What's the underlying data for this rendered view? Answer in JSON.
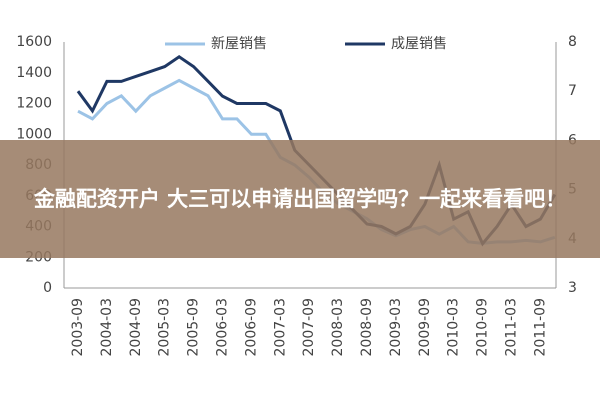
{
  "chart_data": {
    "type": "line",
    "categories": [
      "2003-09",
      null,
      "2004-03",
      null,
      "2004-09",
      null,
      "2005-03",
      null,
      "2005-09",
      null,
      "2006-03",
      null,
      "2006-09",
      null,
      "2007-03",
      null,
      "2007-09",
      null,
      "2008-03",
      null,
      "2008-09",
      null,
      "2009-03",
      null,
      "2009-09",
      null,
      "2010-03",
      null,
      "2010-09",
      null,
      "2011-03",
      null,
      "2011-09",
      null
    ],
    "series": [
      {
        "name": "新屋销售",
        "color": "#9cc3e6",
        "values": [
          1150,
          1100,
          1200,
          1250,
          1150,
          1250,
          1300,
          1350,
          1300,
          1250,
          1100,
          1100,
          1000,
          1000,
          850,
          800,
          720,
          620,
          550,
          500,
          450,
          380,
          340,
          380,
          400,
          350,
          400,
          300,
          290,
          300,
          300,
          310,
          300,
          330
        ]
      },
      {
        "name": "成屋销售",
        "color": "#1f3864",
        "axis": "y2",
        "values": [
          7.0,
          6.6,
          7.2,
          7.2,
          7.3,
          7.4,
          7.5,
          7.7,
          7.5,
          7.2,
          6.9,
          6.75,
          6.75,
          6.75,
          6.6,
          5.8,
          5.5,
          5.2,
          4.9,
          4.6,
          4.3,
          4.25,
          4.1,
          4.25,
          4.7,
          5.5,
          4.4,
          4.55,
          3.9,
          4.25,
          4.7,
          4.25,
          4.4,
          4.9
        ]
      }
    ],
    "ylim": [
      0,
      1600
    ],
    "yticks": [
      0,
      200,
      400,
      600,
      800,
      1000,
      1200,
      1400,
      1600
    ],
    "y2lim": [
      3,
      8
    ],
    "y2ticks": [
      3,
      4,
      5,
      6,
      7,
      8
    ]
  },
  "banner": {
    "text": "金融配资开户 大三可以申请出国留学吗？一起来看看吧！"
  }
}
